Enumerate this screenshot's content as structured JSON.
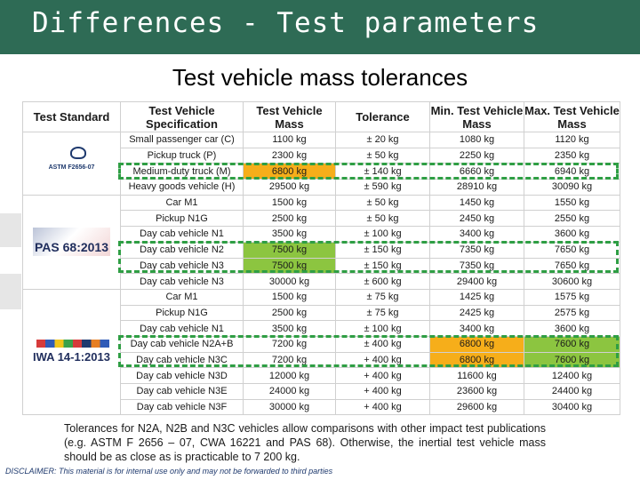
{
  "banner": {
    "title": "Differences - Test parameters",
    "color": "#2e6b55"
  },
  "slide_title": "Test vehicle mass tolerances",
  "table": {
    "headers": [
      "Test Standard",
      "Test Vehicle Specification",
      "Test Vehicle Mass",
      "Tolerance",
      "Min. Test Vehicle Mass",
      "Max. Test Vehicle Mass"
    ],
    "groups": [
      {
        "standard": "ASTM F2656-07",
        "rows": [
          {
            "spec": "Small passenger car (C)",
            "mass": "1100 kg",
            "tol": "± 20 kg",
            "min": "1080 kg",
            "max": "1120 kg"
          },
          {
            "spec": "Pickup truck (P)",
            "mass": "2300 kg",
            "tol": "± 50 kg",
            "min": "2250 kg",
            "max": "2350 kg"
          },
          {
            "spec": "Medium-duty truck (M)",
            "mass": "6800 kg",
            "tol": "± 140 kg",
            "min": "6660 kg",
            "max": "6940 kg"
          },
          {
            "spec": "Heavy goods vehicle (H)",
            "mass": "29500 kg",
            "tol": "± 590 kg",
            "min": "28910 kg",
            "max": "30090 kg"
          }
        ]
      },
      {
        "standard": "PAS 68:2013",
        "rows": [
          {
            "spec": "Car M1",
            "mass": "1500 kg",
            "tol": "± 50 kg",
            "min": "1450 kg",
            "max": "1550 kg"
          },
          {
            "spec": "Pickup N1G",
            "mass": "2500 kg",
            "tol": "± 50 kg",
            "min": "2450 kg",
            "max": "2550 kg"
          },
          {
            "spec": "Day cab vehicle N1",
            "mass": "3500 kg",
            "tol": "± 100 kg",
            "min": "3400 kg",
            "max": "3600 kg"
          },
          {
            "spec": "Day cab vehicle N2",
            "mass": "7500 kg",
            "tol": "± 150 kg",
            "min": "7350 kg",
            "max": "7650 kg"
          },
          {
            "spec": "Day cab vehicle N3",
            "mass": "7500 kg",
            "tol": "± 150 kg",
            "min": "7350 kg",
            "max": "7650 kg"
          },
          {
            "spec": "Day cab vehicle N3",
            "mass": "30000 kg",
            "tol": "± 600 kg",
            "min": "29400 kg",
            "max": "30600 kg"
          }
        ]
      },
      {
        "standard": "IWA 14-1:2013",
        "rows": [
          {
            "spec": "Car M1",
            "mass": "1500 kg",
            "tol": "± 75 kg",
            "min": "1425 kg",
            "max": "1575 kg"
          },
          {
            "spec": "Pickup N1G",
            "mass": "2500 kg",
            "tol": "± 75 kg",
            "min": "2425 kg",
            "max": "2575 kg"
          },
          {
            "spec": "Day cab vehicle N1",
            "mass": "3500 kg",
            "tol": "± 100 kg",
            "min": "3400 kg",
            "max": "3600 kg"
          },
          {
            "spec": "Day cab vehicle N2A+B",
            "mass": "7200 kg",
            "tol": "± 400 kg",
            "min": "6800 kg",
            "max": "7600 kg"
          },
          {
            "spec": "Day cab vehicle N3C",
            "mass": "7200 kg",
            "tol": "+ 400 kg",
            "min": "6800 kg",
            "max": "7600 kg"
          },
          {
            "spec": "Day cab vehicle N3D",
            "mass": "12000 kg",
            "tol": "+ 400 kg",
            "min": "11600 kg",
            "max": "12400 kg"
          },
          {
            "spec": "Day cab vehicle N3E",
            "mass": "24000 kg",
            "tol": "+ 400 kg",
            "min": "23600 kg",
            "max": "24400 kg"
          },
          {
            "spec": "Day cab vehicle N3F",
            "mass": "30000 kg",
            "tol": "+ 400 kg",
            "min": "29600 kg",
            "max": "30400 kg"
          }
        ]
      }
    ],
    "highlight_colors": {
      "orange": "#f6ae1a",
      "green": "#8cc540",
      "dash": "#2f9e44"
    }
  },
  "note": "Tolerances for N2A, N2B and N3C vehicles allow comparisons with other impact test publications (e.g. ASTM F 2656 – 07, CWA 16221 and PAS 68). Otherwise, the inertial test vehicle mass should be as close as is practicable to 7 200 kg.",
  "disclaimer": "DISCLAIMER: This material is for internal use only and may not be forwarded to third parties"
}
